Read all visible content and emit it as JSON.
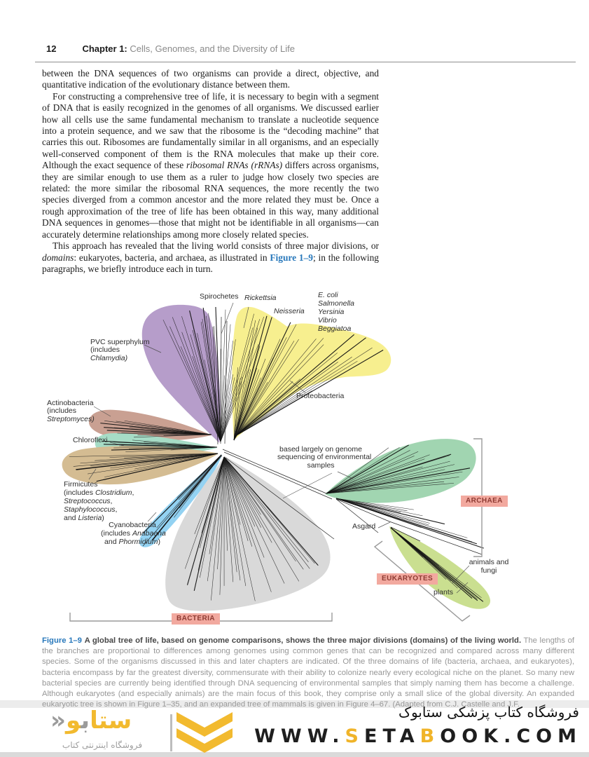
{
  "header": {
    "page_number": "12",
    "chapter_label": "Chapter 1:",
    "chapter_title": "Cells, Genomes, and the Diversity of Life"
  },
  "body": {
    "p1": "between the DNA sequences of two organisms can provide a direct, objective, and quantitative indication of the evolutionary distance between them.",
    "p2a": "For constructing a comprehensive tree of life, it is necessary to begin with a segment of DNA that is easily recognized in the genomes of all organisms. We discussed earlier how all cells use the same fundamental mechanism to translate a nucleotide sequence into a protein sequence, and we saw that the ribosome is the “decoding machine” that carries this out. Ribosomes are fundamentally similar in all organisms, and an especially well-conserved component of them is the RNA molecules that make up their core. Although the exact sequence of these ",
    "p2b": "ribosomal RNAs (rRNAs)",
    "p2c": " differs across organisms, they are similar enough to use them as a ruler to judge how closely two species are related: the more similar the ribosomal RNA sequences, the more recently the two species diverged from a common ancestor and the more related they must be. Once a rough approximation of the tree of life has been obtained in this way, many additional DNA sequences in genomes—those that might not be identifiable in all organisms—can accurately determine relationships among more closely related species.",
    "p3a": "This approach has revealed that the living world consists of three major divisions, or ",
    "p3b": "domains",
    "p3c": ": eukaryotes, bacteria, and archaea, as illustrated in ",
    "p3d": "Figure 1–9",
    "p3e": "; in the following paragraphs, we briefly introduce each in turn."
  },
  "figure": {
    "labels": {
      "spirochetes": "Spirochetes",
      "rickettsia": "Rickettsia",
      "neisseria": "Neisseria",
      "gamma": [
        "E. coli",
        "Salmonella",
        "Yersinia",
        "Vibrio",
        "Beggiatoa"
      ],
      "proteobacteria": "Proteobacteria",
      "pvc": {
        "l1": "PVC superphylum",
        "l2": "(includes",
        "l3": "Chlamydia)"
      },
      "actinobacteria": {
        "l1": "Actinobacteria",
        "l2": "(includes",
        "l3": "Streptomyces)"
      },
      "chloroflexi": "Chloroflexi",
      "firmicutes": {
        "l1": "Firmicutes",
        "l2a": "(includes ",
        "l2b": "Clostridium",
        "l2c": ",",
        "l3a": "Streptococcus",
        "l3b": ",",
        "l4a": "Staphylococcus",
        "l4b": ",",
        "l5a": "and ",
        "l5b": "Listeria",
        "l5c": ")"
      },
      "cyanobacteria": {
        "l1": "Cyanobacteria",
        "l2a": "(includes ",
        "l2b": "Anabaena",
        "l3a": "and ",
        "l3b": "Phormidium",
        "l3c": ")"
      },
      "environmental": {
        "l1": "based largely on genome",
        "l2": "sequencing of environmental",
        "l3": "samples"
      },
      "asgard": "Asgard",
      "animals_fungi": {
        "l1": "animals and",
        "l2": "fungi"
      },
      "plants": "plants"
    },
    "domains": {
      "archaea": "ARCHAEA",
      "eukaryotes": "EUKARYOTES",
      "bacteria": "BACTERIA"
    },
    "colors": {
      "pvc_purple": "#b69dca",
      "proteobacteria_yellow": "#f7ef8f",
      "actinobacteria_brown": "#c9a092",
      "chloroflexi_teal": "#a6dcc6",
      "firmicutes_tan": "#d4bc92",
      "cyanobacteria_blue": "#93d2f2",
      "bacteria_gray": "#d9d9d9",
      "archaea_green": "#a1d5b1",
      "eukaryotes_green": "#cadf90",
      "domain_box_pink": "#f2a99f",
      "domain_box_text": "#8e3b33",
      "figure_ref_blue": "#2878bb"
    }
  },
  "caption": {
    "ref": "Figure 1–9",
    "title": "A global tree of life, based on genome comparisons, shows the three major divisions (domains) of the living world.",
    "body": "The lengths of the branches are proportional to differences among genomes using common genes that can be recognized and compared across many different species. Some of the organisms discussed in this and later chapters are indicated. Of the three domains of life (bacteria, archaea, and eukaryotes), bacteria encompass by far the greatest diversity, commensurate with their ability to colonize nearly every ecological niche on the planet. So many new bacterial species are currently being identified through DNA sequencing of environmental samples that simply naming them has become a challenge. Although eukaryotes (and especially animals) are the main focus of this book, they comprise only a small slice of the global diversity. An expanded eukaryotic tree is shown in Figure 1–35, and an expanded tree of mammals is given in Figure 4–67. (Adapted from C.J. Castelle and J.F."
  },
  "footer": {
    "brand_part1": "ستا",
    "brand_part2": "ب",
    "brand_part3": "و",
    "brand_mark": "«",
    "brand_subtitle": "فروشگاه اینترنتی کتاب",
    "tagline": "فروشگاه کتاب پزشکی ستابوک",
    "url": {
      "p1": "WWW.",
      "p2": "S",
      "p3": "ETA",
      "p4": "B",
      "p5": "OOK.COM"
    },
    "brand_yellow": "#f2ba2f"
  }
}
